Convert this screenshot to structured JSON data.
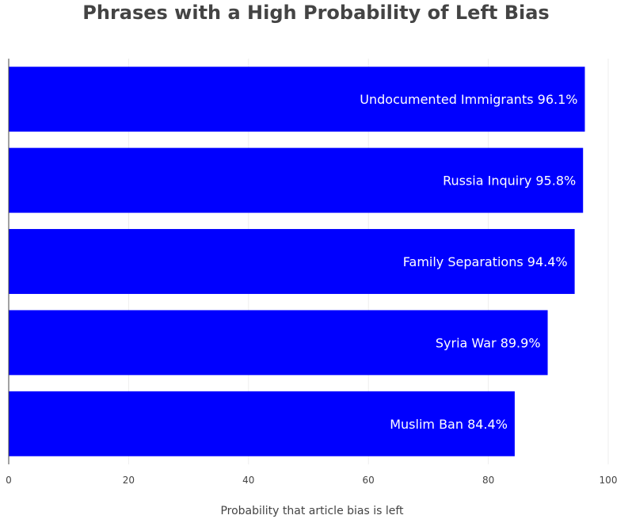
{
  "chart_data": {
    "type": "bar",
    "orientation": "horizontal",
    "title": "Phrases with a High Probability of Left Bias",
    "xlabel": "Probability that article bias is left",
    "ylabel": "",
    "xlim": [
      0,
      100
    ],
    "x_ticks": [
      "0",
      "20",
      "40",
      "60",
      "80",
      "100"
    ],
    "categories": [
      "Undocumented Immigrants",
      "Russia Inquiry",
      "Family Separations",
      "Syria War",
      "Muslim Ban"
    ],
    "values": [
      96.1,
      95.8,
      94.4,
      89.9,
      84.4
    ],
    "bar_labels": [
      "Undocumented Immigrants 96.1%",
      "Russia Inquiry 95.8%",
      "Family Separations 94.4%",
      "Syria War 89.9%",
      "Muslim Ban 84.4%"
    ],
    "bar_color": "#0000ff",
    "grid": true,
    "legend": false
  }
}
